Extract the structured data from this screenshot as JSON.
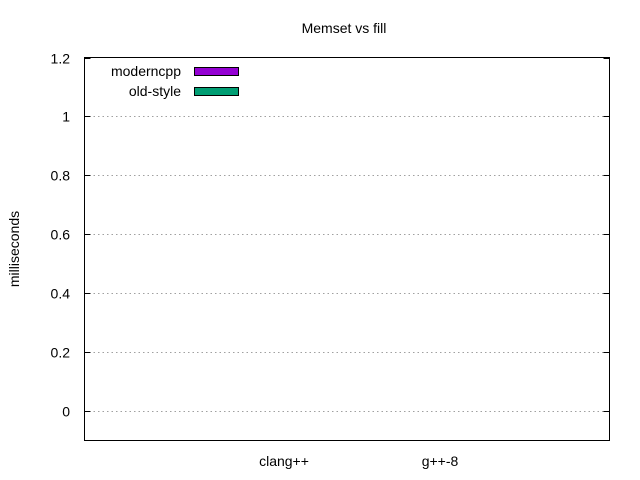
{
  "chart_data": {
    "type": "bar",
    "title": "Memset vs fill",
    "xlabel": "",
    "ylabel": "milliseconds",
    "categories": [
      "clang++",
      "g++-8"
    ],
    "series": [
      {
        "name": "moderncpp",
        "color": "#9400d3",
        "values": [
          0.0,
          0.0
        ]
      },
      {
        "name": "old-style",
        "color": "#009e73",
        "values": [
          0.0,
          0.0
        ]
      }
    ],
    "ylim": [
      -0.1,
      1.2
    ],
    "yticks": [
      0,
      0.2,
      0.4,
      0.6,
      0.8,
      1,
      1.2
    ],
    "ytick_labels": [
      "0",
      "0.2",
      "0.4",
      "0.6",
      "0.8",
      "1",
      "1.2"
    ],
    "grid": "horizontal dotted",
    "legend_position": "top-left"
  }
}
